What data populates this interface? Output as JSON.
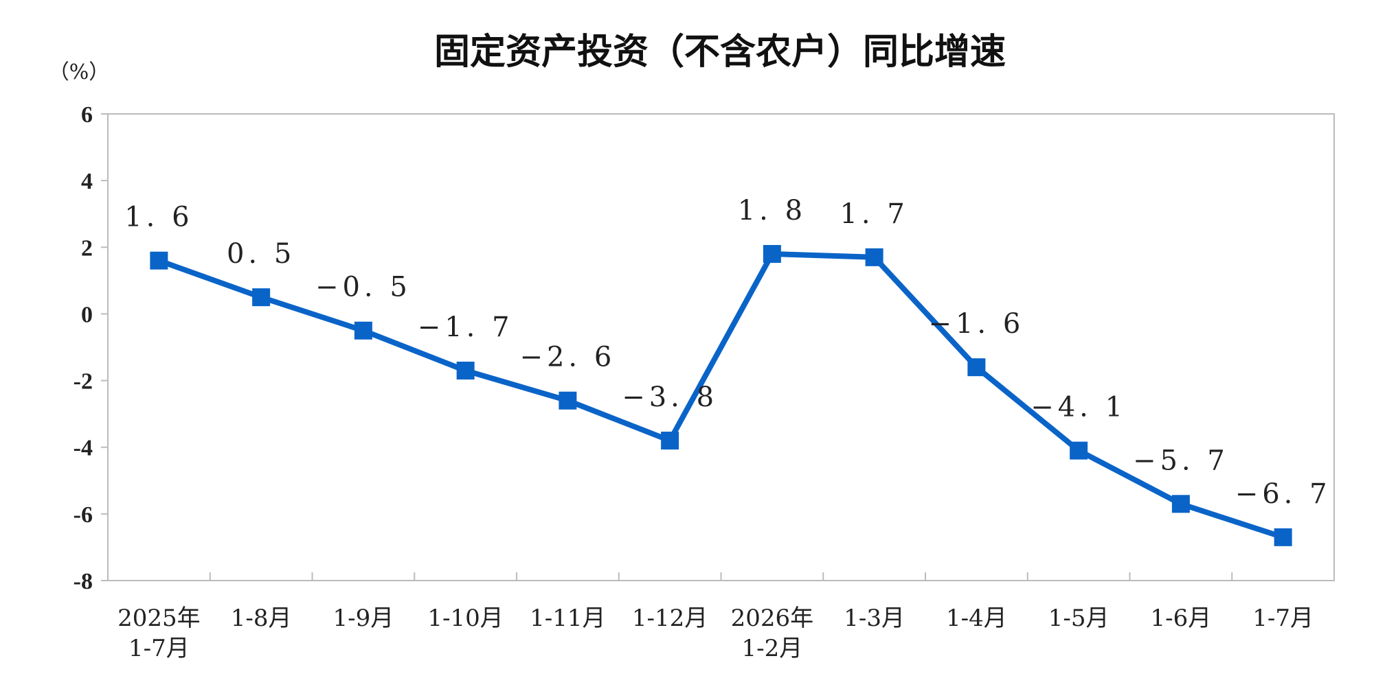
{
  "chart_data": {
    "type": "line",
    "title": "固定资产投资（不含农户）同比增速",
    "unit_label": "（%）",
    "categories": [
      [
        "2025年",
        "1-7月"
      ],
      [
        "1-8月"
      ],
      [
        "1-9月"
      ],
      [
        "1-10月"
      ],
      [
        "1-11月"
      ],
      [
        "1-12月"
      ],
      [
        "2026年",
        "1-2月"
      ],
      [
        "1-3月"
      ],
      [
        "1-4月"
      ],
      [
        "1-5月"
      ],
      [
        "1-6月"
      ],
      [
        "1-7月"
      ]
    ],
    "series": [
      {
        "values": [
          1.6,
          0.5,
          -0.5,
          -1.7,
          -2.6,
          -3.8,
          1.8,
          1.7,
          -1.6,
          -4.1,
          -5.7,
          -6.7
        ],
        "color": "#0a64c8"
      }
    ],
    "data_labels": [
      "1. 6",
      "0. 5",
      "−0. 5",
      "−1. 7",
      "−2. 6",
      "−3. 8",
      "1. 8",
      "1. 7",
      "−1. 6",
      "−4. 1",
      "−5. 7",
      "−6. 7"
    ],
    "ylim": [
      -8,
      6
    ],
    "yticks": [
      6,
      4,
      2,
      0,
      -2,
      -4,
      -6,
      -8
    ],
    "ytick_labels": [
      "6",
      "4",
      "2",
      "0",
      "-2",
      "-4",
      "-6",
      "-8"
    ],
    "xlabel": "",
    "ylabel": "",
    "grid": false,
    "legend": "none",
    "marker": "square",
    "axis_color": "#bbbbbb"
  }
}
